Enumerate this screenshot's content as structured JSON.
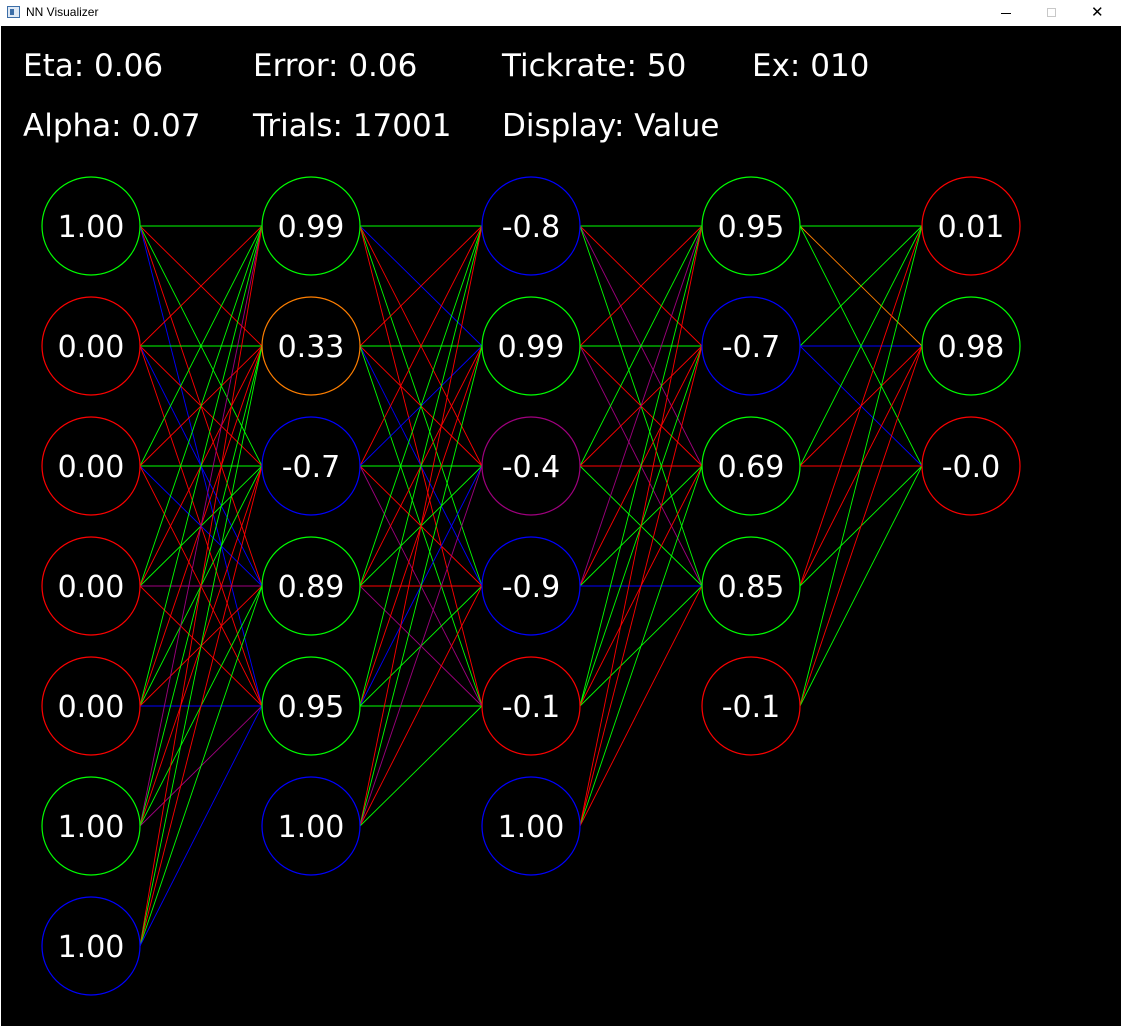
{
  "window": {
    "title": "NN Visualizer",
    "app_icon": "window-app-icon",
    "controls": {
      "minimize": "minimize-icon",
      "maximize": "maximize-icon",
      "close": "close-icon"
    }
  },
  "stats": {
    "eta": "Eta: 0.06",
    "error": "Error: 0.06",
    "tickrate": "Tickrate: 50",
    "ex": "Ex: 010",
    "alpha": "Alpha: 0.07",
    "trials": "Trials: 17001",
    "display": "Display: Value"
  },
  "colors": {
    "background": "#000000",
    "text": "#ffffff",
    "green": "#00ff00",
    "red": "#ff0000",
    "blue": "#0000ff",
    "orange": "#ff7f00",
    "purple": "#a0007f"
  },
  "network": {
    "layers": [
      [
        {
          "value": "1.00",
          "color": "#00ff00"
        },
        {
          "value": "0.00",
          "color": "#ff0000"
        },
        {
          "value": "0.00",
          "color": "#ff0000"
        },
        {
          "value": "0.00",
          "color": "#ff0000"
        },
        {
          "value": "0.00",
          "color": "#ff0000"
        },
        {
          "value": "1.00",
          "color": "#00ff00"
        },
        {
          "value": "1.00",
          "color": "#0000ff"
        }
      ],
      [
        {
          "value": "0.99",
          "color": "#00ff00"
        },
        {
          "value": "0.33",
          "color": "#ff7f00"
        },
        {
          "value": "-0.7",
          "color": "#0000ff"
        },
        {
          "value": "0.89",
          "color": "#00ff00"
        },
        {
          "value": "0.95",
          "color": "#00ff00"
        },
        {
          "value": "1.00",
          "color": "#0000ff"
        }
      ],
      [
        {
          "value": "-0.8",
          "color": "#0000ff"
        },
        {
          "value": "0.99",
          "color": "#00ff00"
        },
        {
          "value": "-0.4",
          "color": "#a0007f"
        },
        {
          "value": "-0.9",
          "color": "#0000ff"
        },
        {
          "value": "-0.1",
          "color": "#ff0000"
        },
        {
          "value": "1.00",
          "color": "#0000ff"
        }
      ],
      [
        {
          "value": "0.95",
          "color": "#00ff00"
        },
        {
          "value": "-0.7",
          "color": "#0000ff"
        },
        {
          "value": "0.69",
          "color": "#00ff00"
        },
        {
          "value": "0.85",
          "color": "#00ff00"
        },
        {
          "value": "-0.1",
          "color": "#ff0000"
        }
      ],
      [
        {
          "value": "0.01",
          "color": "#ff0000"
        },
        {
          "value": "0.98",
          "color": "#00ff00"
        },
        {
          "value": "-0.0",
          "color": "#ff0000"
        }
      ]
    ],
    "weight_colors": [
      [
        "#00ff00",
        "#ff0000",
        "#00ff00",
        "#ff0000",
        "#0000ff",
        "#ff0000",
        "#00ff00",
        "#ff0000",
        "#0000ff",
        "#ff0000",
        "#00ff00",
        "#ff0000",
        "#00ff00",
        "#0000ff",
        "#ff0000",
        "#00ff00",
        "#ff0000",
        "#00ff00",
        "#a0007f",
        "#ff0000",
        "#00ff00",
        "#ff0000",
        "#00ff00",
        "#ff0000",
        "#0000ff",
        "#a0007f",
        "#00ff00",
        "#ff0000",
        "#00ff00",
        "#a0007f",
        "#ff0000",
        "#00ff00",
        "#ff0000",
        "#00ff00",
        "#0000ff"
      ],
      [
        "#00ff00",
        "#0000ff",
        "#ff0000",
        "#00ff00",
        "#ff0000",
        "#ff0000",
        "#00ff00",
        "#ff0000",
        "#0000ff",
        "#00ff00",
        "#ff0000",
        "#0000ff",
        "#00ff00",
        "#ff0000",
        "#a0007f",
        "#00ff00",
        "#ff0000",
        "#00ff00",
        "#ff0000",
        "#a0007f",
        "#00ff00",
        "#ff0000",
        "#0000ff",
        "#00ff00",
        "#00ff00",
        "#ff0000",
        "#00ff00",
        "#a0007f",
        "#ff0000",
        "#00ff00"
      ],
      [
        "#00ff00",
        "#ff0000",
        "#a0007f",
        "#00ff00",
        "#ff0000",
        "#00ff00",
        "#ff0000",
        "#a0007f",
        "#00ff00",
        "#ff0000",
        "#ff0000",
        "#00ff00",
        "#a0007f",
        "#ff0000",
        "#00ff00",
        "#0000ff",
        "#00ff00",
        "#00ff00",
        "#ff0000",
        "#00ff00",
        "#ff0000",
        "#ff0000",
        "#00ff00",
        "#ff0000",
        "#00ff00",
        "#ff0000",
        "#00ff00",
        "#00ff00",
        "#ff0000",
        "#00ff00"
      ],
      [
        "#00ff00",
        "#ff7f00",
        "#00ff00",
        "#00ff00",
        "#0000ff",
        "#0000ff",
        "#00ff00",
        "#ff0000",
        "#ff0000",
        "#ff0000",
        "#ff0000",
        "#00ff00",
        "#00ff00",
        "#ff0000",
        "#00ff00"
      ]
    ]
  }
}
